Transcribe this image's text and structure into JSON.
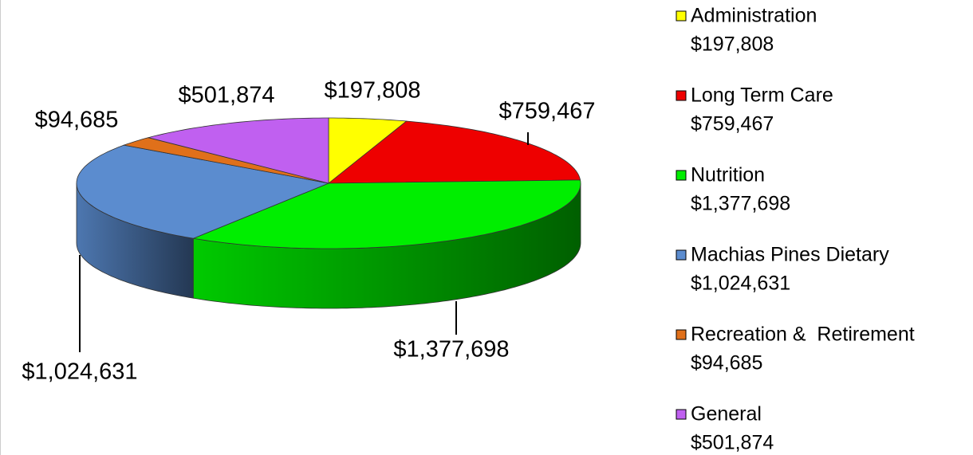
{
  "chart_data": {
    "type": "pie3d",
    "categories": [
      "Administration",
      "Long Term Care",
      "Nutrition",
      "Machias Pines Dietary",
      "Recreation &  Retirement",
      "General"
    ],
    "values": [
      197808,
      759467,
      1377698,
      1024631,
      94685,
      501874
    ],
    "value_labels": [
      "$197,808",
      "$759,467",
      "$1,377,698",
      "$1,024,631",
      "$94,685",
      "$501,874"
    ],
    "colors": [
      "#ffff00",
      "#ee0000",
      "#00ee00",
      "#5b8ccf",
      "#e0701a",
      "#c060f0"
    ],
    "legend": "right"
  }
}
